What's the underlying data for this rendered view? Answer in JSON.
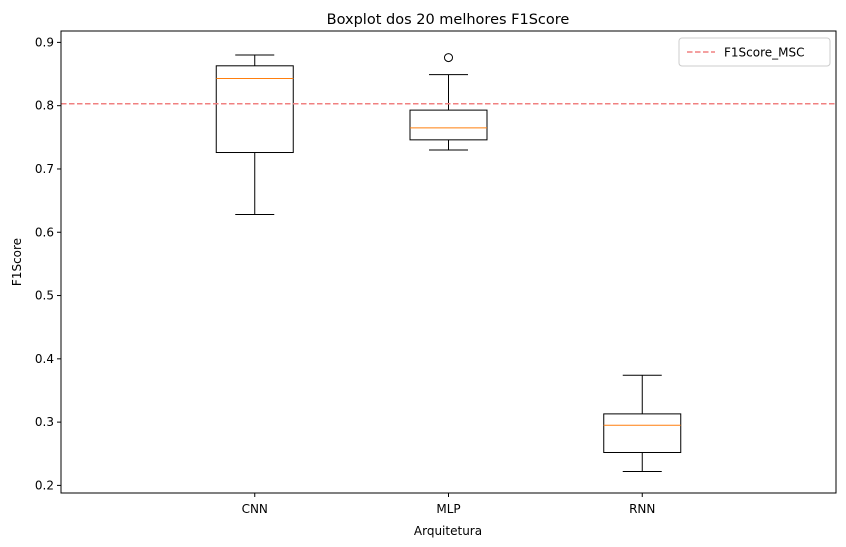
{
  "chart_data": {
    "type": "boxplot",
    "title": "Boxplot dos 20 melhores F1Score",
    "xlabel": "Arquitetura",
    "ylabel": "F1Score",
    "ylim": [
      0.188,
      0.918
    ],
    "yticks": [
      "0.2",
      "0.3",
      "0.4",
      "0.5",
      "0.6",
      "0.7",
      "0.8",
      "0.9"
    ],
    "ytick_values": [
      0.2,
      0.3,
      0.4,
      0.5,
      0.6,
      0.7,
      0.8,
      0.9
    ],
    "categories": [
      "CNN",
      "MLP",
      "RNN"
    ],
    "boxes": [
      {
        "whisker_low": 0.628,
        "q1": 0.726,
        "median": 0.843,
        "q3": 0.863,
        "whisker_high": 0.88,
        "outliers": []
      },
      {
        "whisker_low": 0.73,
        "q1": 0.746,
        "median": 0.765,
        "q3": 0.793,
        "whisker_high": 0.849,
        "outliers": [
          0.876
        ]
      },
      {
        "whisker_low": 0.222,
        "q1": 0.252,
        "median": 0.295,
        "q3": 0.313,
        "whisker_high": 0.374,
        "outliers": []
      }
    ],
    "reference_line": {
      "name": "F1Score_MSC",
      "value": 0.803,
      "color": "#f08080",
      "style": "dashed"
    },
    "legend": {
      "position": "top-right",
      "entries": [
        "F1Score_MSC"
      ]
    },
    "colors": {
      "box": "#000000",
      "median": "#ff7f0e",
      "reference": "#f08080"
    },
    "grid": false
  }
}
